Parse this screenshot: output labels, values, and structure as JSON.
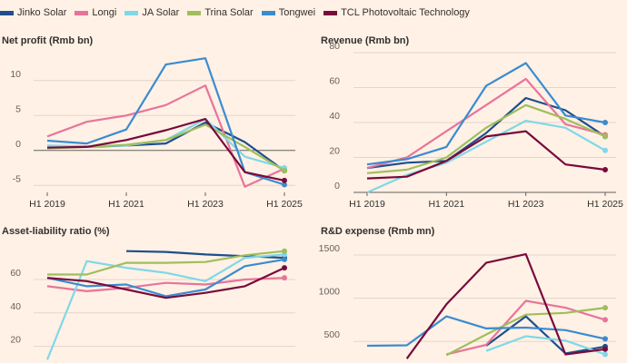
{
  "legend": [
    {
      "name": "Jinko Solar",
      "color": "#1f4e8c"
    },
    {
      "name": "Longi",
      "color": "#e8749a"
    },
    {
      "name": "JA Solar",
      "color": "#7fd8e8"
    },
    {
      "name": "Trina Solar",
      "color": "#9fbe5c"
    },
    {
      "name": "Tongwei",
      "color": "#3a8bd0"
    },
    {
      "name": "TCL Photovoltaic Technology",
      "color": "#780a3c"
    }
  ],
  "chart_data": [
    {
      "type": "line",
      "title": "Net profit (Rmb bn)",
      "x": [
        "H1 2019",
        "H2 2019",
        "H1 2020",
        "H2 2020",
        "H1 2021",
        "H2 2021",
        "H1 2022",
        "H2 2022",
        "H1 2023",
        "H2 2023",
        "H1 2024",
        "H2 2024",
        "H1 2025"
      ],
      "xticks": [
        "H1 2019",
        "H1 2021",
        "H1 2023",
        "H1 2025"
      ],
      "yticks": [
        -5,
        0,
        5,
        10
      ],
      "ylim": [
        -6,
        14
      ],
      "series": [
        {
          "name": "Jinko Solar",
          "values": [
            null,
            null,
            0.5,
            null,
            0.7,
            null,
            1.0,
            null,
            4.0,
            null,
            1.2,
            null,
            -2.9
          ]
        },
        {
          "name": "Longi",
          "values": [
            2.0,
            null,
            4.1,
            null,
            5.0,
            null,
            6.5,
            null,
            9.3,
            null,
            -5.2,
            null,
            -2.6
          ]
        },
        {
          "name": "JA Solar",
          "values": [
            0.7,
            null,
            0.6,
            null,
            0.7,
            null,
            1.5,
            null,
            4.5,
            null,
            -0.9,
            null,
            -2.5
          ]
        },
        {
          "name": "Trina Solar",
          "values": [
            0.3,
            null,
            0.5,
            null,
            0.8,
            null,
            1.5,
            null,
            3.7,
            null,
            0.5,
            null,
            -2.9
          ]
        },
        {
          "name": "Tongwei",
          "values": [
            1.4,
            null,
            1.0,
            null,
            3.0,
            null,
            12.3,
            null,
            13.2,
            null,
            -3.1,
            null,
            -4.9
          ]
        },
        {
          "name": "TCL Photovoltaic Technology",
          "values": [
            0.4,
            null,
            0.5,
            null,
            1.5,
            null,
            2.9,
            null,
            4.5,
            null,
            -3.1,
            null,
            -4.3
          ]
        }
      ]
    },
    {
      "type": "line",
      "title": "Revenue (Rmb bn)",
      "x": [
        "H1 2019",
        "H2 2019",
        "H1 2020",
        "H2 2020",
        "H1 2021",
        "H2 2021",
        "H1 2022",
        "H2 2022",
        "H1 2023",
        "H2 2023",
        "H1 2024",
        "H2 2024",
        "H1 2025"
      ],
      "xticks": [
        "H1 2019",
        "H1 2021",
        "H1 2023",
        "H1 2025"
      ],
      "yticks": [
        0,
        20,
        40,
        60,
        80
      ],
      "ylim": [
        0,
        80
      ],
      "series": [
        {
          "name": "Jinko Solar",
          "values": [
            14,
            null,
            17,
            null,
            18,
            null,
            34,
            null,
            54,
            null,
            47,
            null,
            32
          ]
        },
        {
          "name": "Longi",
          "values": [
            14,
            null,
            20,
            null,
            35,
            null,
            50,
            null,
            65,
            null,
            39,
            null,
            33
          ]
        },
        {
          "name": "JA Solar",
          "values": [
            0,
            null,
            10,
            null,
            17,
            null,
            29,
            null,
            41,
            null,
            37,
            null,
            24
          ]
        },
        {
          "name": "Trina Solar",
          "values": [
            11,
            null,
            13,
            null,
            20,
            null,
            37,
            null,
            50,
            null,
            42,
            null,
            32
          ]
        },
        {
          "name": "Tongwei",
          "values": [
            16,
            null,
            19,
            null,
            26,
            null,
            61,
            null,
            74,
            null,
            44,
            null,
            40
          ]
        },
        {
          "name": "TCL Photovoltaic Technology",
          "values": [
            8,
            null,
            9,
            null,
            18,
            null,
            32,
            null,
            35,
            null,
            16,
            null,
            13
          ]
        }
      ]
    },
    {
      "type": "line",
      "title": "Asset-liability ratio (%)",
      "x": [
        "H1 2019",
        "H2 2019",
        "H1 2020",
        "H2 2020",
        "H1 2021",
        "H2 2021",
        "H1 2022",
        "H2 2022",
        "H1 2023",
        "H2 2023",
        "H1 2024",
        "H2 2024",
        "H1 2025"
      ],
      "yticks": [
        20,
        40,
        60
      ],
      "ylim": [
        10,
        85
      ],
      "series": [
        {
          "name": "Jinko Solar",
          "values": [
            null,
            null,
            null,
            null,
            77,
            null,
            76.5,
            null,
            75,
            null,
            74,
            null,
            73
          ]
        },
        {
          "name": "Longi",
          "values": [
            56,
            null,
            53,
            null,
            55,
            null,
            58,
            null,
            57,
            null,
            60,
            null,
            61
          ]
        },
        {
          "name": "JA Solar",
          "values": [
            12,
            null,
            71,
            null,
            67,
            null,
            64,
            null,
            59,
            null,
            73,
            null,
            75
          ]
        },
        {
          "name": "Trina Solar",
          "values": [
            63,
            null,
            63,
            null,
            70,
            null,
            70,
            null,
            70.5,
            null,
            74.5,
            null,
            77
          ]
        },
        {
          "name": "Tongwei",
          "values": [
            61,
            null,
            56,
            null,
            57,
            null,
            50,
            null,
            54,
            null,
            68,
            null,
            72
          ]
        },
        {
          "name": "TCL Photovoltaic Technology",
          "values": [
            61,
            null,
            59,
            null,
            54,
            null,
            49,
            null,
            52,
            null,
            56,
            null,
            67
          ]
        }
      ]
    },
    {
      "type": "line",
      "title": "R&D expense (Rmb mn)",
      "x": [
        "H1 2019",
        "H2 2019",
        "H1 2020",
        "H2 2020",
        "H1 2021",
        "H2 2021",
        "H1 2022",
        "H2 2022",
        "H1 2023",
        "H2 2023",
        "H1 2024",
        "H2 2024",
        "H1 2025"
      ],
      "yticks": [
        500,
        1000,
        1500
      ],
      "ylim": [
        250,
        1700
      ],
      "series": [
        {
          "name": "Jinko Solar",
          "values": [
            null,
            null,
            null,
            null,
            null,
            null,
            450,
            null,
            790,
            null,
            360,
            null,
            440
          ]
        },
        {
          "name": "Longi",
          "values": [
            null,
            null,
            null,
            null,
            350,
            null,
            460,
            null,
            970,
            null,
            890,
            null,
            750
          ]
        },
        {
          "name": "JA Solar",
          "values": [
            null,
            null,
            null,
            null,
            null,
            null,
            390,
            null,
            560,
            null,
            510,
            null,
            350
          ]
        },
        {
          "name": "Trina Solar",
          "values": [
            null,
            null,
            null,
            null,
            340,
            null,
            580,
            null,
            810,
            null,
            830,
            null,
            890
          ]
        },
        {
          "name": "Tongwei",
          "values": [
            450,
            null,
            455,
            null,
            790,
            null,
            650,
            null,
            660,
            null,
            630,
            null,
            530
          ]
        },
        {
          "name": "TCL Photovoltaic Technology",
          "values": [
            null,
            null,
            300,
            null,
            930,
            null,
            1410,
            null,
            1510,
            null,
            350,
            null,
            410
          ]
        }
      ]
    }
  ]
}
